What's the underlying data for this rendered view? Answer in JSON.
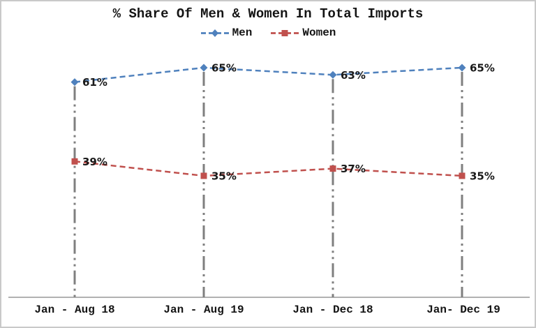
{
  "chart_data": {
    "type": "line",
    "title": "% Share Of Men & Women In Total Imports",
    "categories": [
      "Jan - Aug 18",
      "Jan - Aug 19",
      "Jan - Dec 18",
      "Jan- Dec 19"
    ],
    "series": [
      {
        "name": "Men",
        "values": [
          61,
          65,
          63,
          65
        ],
        "labels": [
          "61%",
          "65%",
          "63%",
          "65%"
        ],
        "color": "#4f81bd",
        "marker": "diamond",
        "line_style": "dashed"
      },
      {
        "name": "Women",
        "values": [
          39,
          35,
          37,
          35
        ],
        "labels": [
          "39%",
          "35%",
          "37%",
          "35%"
        ],
        "color": "#c0504d",
        "marker": "square",
        "line_style": "dashed"
      }
    ],
    "value_suffix": "%",
    "xlabel": "",
    "ylabel": "",
    "ylim": [
      0,
      70
    ],
    "value_axis_visible": false,
    "grid": false,
    "drop_lines": true,
    "legend_position": "top",
    "colors": {
      "axis_line": "#a6a6a6",
      "drop_line": "#7f7f7f",
      "data_label": "#1a1a1a",
      "text": "#141414"
    }
  }
}
